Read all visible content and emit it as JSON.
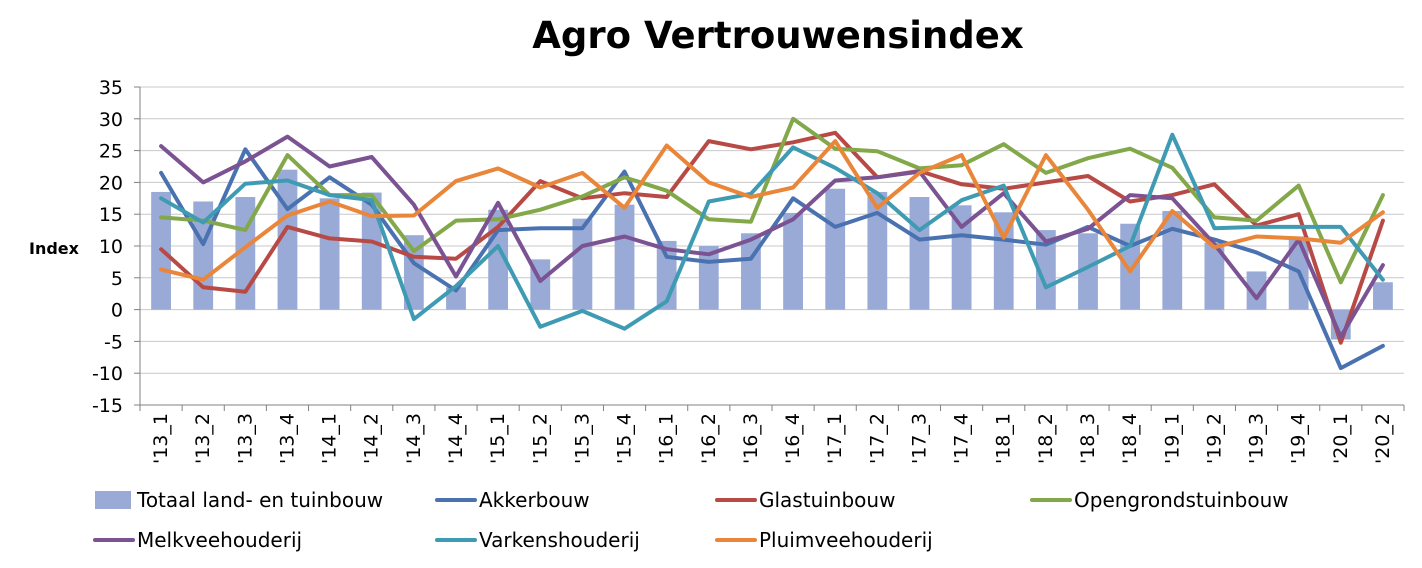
{
  "chart_data": {
    "type": "bar",
    "title": "Agro Vertrouwensindex",
    "ylabel": "Index",
    "xlabel": "",
    "ylim": [
      -15,
      35
    ],
    "yticks": [
      -15,
      -10,
      -5,
      0,
      5,
      10,
      15,
      20,
      25,
      30,
      35
    ],
    "grid": true,
    "legend_position": "bottom",
    "categories": [
      "'13_1",
      "'13_2",
      "'13_3",
      "'13_4",
      "'14_1",
      "'14_2",
      "'14_3",
      "'14_4",
      "'15_1",
      "'15_2",
      "'15_3",
      "'15_4",
      "'16_1",
      "'16_2",
      "'16_3",
      "'16_4",
      "'17_1",
      "'17_2",
      "'17_3",
      "'17_4",
      "'18_1",
      "'18_2",
      "'18_3",
      "'18_4",
      "'19_1",
      "'19_2",
      "'19_3",
      "'19_4",
      "'20_1",
      "'20_2"
    ],
    "series": [
      {
        "name": "Totaal land- en tuinbouw",
        "kind": "bar",
        "color": "#9aaad6",
        "values": [
          18.5,
          17,
          17.7,
          22,
          17.5,
          18.4,
          11.7,
          3.5,
          15.7,
          7.9,
          14.3,
          16.5,
          10.8,
          10,
          12,
          15.2,
          19,
          18.5,
          17.7,
          16.4,
          15.3,
          12.5,
          12,
          13.5,
          15.5,
          10.5,
          6,
          11.5,
          -4.7,
          4.3
        ]
      },
      {
        "name": "Akkerbouw",
        "kind": "line",
        "color": "#4a72b0",
        "values": [
          21.5,
          10.3,
          25.2,
          15.8,
          20.8,
          16.5,
          7.3,
          3,
          12.5,
          12.8,
          12.8,
          21.7,
          8.3,
          7.5,
          8,
          17.5,
          13,
          15.2,
          11,
          11.7,
          11,
          10.2,
          13,
          10,
          12.7,
          11,
          9,
          6,
          -9.2,
          -5.7
        ]
      },
      {
        "name": "Glastuinbouw",
        "kind": "line",
        "color": "#b84a46",
        "values": [
          9.5,
          3.5,
          2.8,
          13,
          11.2,
          10.7,
          8.3,
          8,
          13,
          20.2,
          17.5,
          18.3,
          17.7,
          26.5,
          25.2,
          26.3,
          27.8,
          20.8,
          21.8,
          19.7,
          19,
          20,
          21,
          17,
          18,
          19.7,
          13.2,
          15,
          -5.2,
          14
        ]
      },
      {
        "name": "Opengrondstuinbouw",
        "kind": "line",
        "color": "#82a84a",
        "values": [
          14.5,
          14,
          12.5,
          24.3,
          18,
          18,
          9.2,
          14,
          14.2,
          15.7,
          17.8,
          20.8,
          18.7,
          14.2,
          13.8,
          30,
          25.3,
          24.9,
          22.2,
          22.7,
          26,
          21.5,
          23.8,
          25.3,
          22.3,
          14.5,
          14,
          19.5,
          4.3,
          18
        ]
      },
      {
        "name": "Melkveehouderij",
        "kind": "line",
        "color": "#7b5393",
        "values": [
          25.7,
          20,
          23.3,
          27.2,
          22.5,
          24,
          16.5,
          5.2,
          16.8,
          4.5,
          10,
          11.5,
          9.5,
          8.7,
          11,
          14.2,
          20.3,
          20.8,
          21.7,
          13,
          18.3,
          10.7,
          12.7,
          18,
          17.5,
          10.3,
          1.8,
          11,
          -4.3,
          7
        ]
      },
      {
        "name": "Varkenshouderij",
        "kind": "line",
        "color": "#3f9bb3",
        "values": [
          17.5,
          13.7,
          19.8,
          20.3,
          18,
          17.2,
          -1.5,
          3.7,
          10,
          -2.7,
          -0.2,
          -3,
          1.3,
          17,
          18.2,
          25.5,
          22.3,
          18.3,
          12.5,
          17.2,
          19.5,
          3.5,
          6.7,
          10,
          27.5,
          12.8,
          13,
          13,
          13,
          4.7
        ]
      },
      {
        "name": "Pluimveehouderij",
        "kind": "line",
        "color": "#e9863a",
        "values": [
          6.3,
          4.7,
          9.8,
          14.8,
          17,
          14.7,
          14.8,
          20.2,
          22.2,
          19.2,
          21.5,
          16,
          25.8,
          20,
          17.7,
          19.2,
          26.5,
          16,
          21.5,
          24.3,
          11.3,
          24.3,
          15.7,
          6,
          15.5,
          9.8,
          11.5,
          11.2,
          10.5,
          15.3
        ]
      }
    ]
  }
}
